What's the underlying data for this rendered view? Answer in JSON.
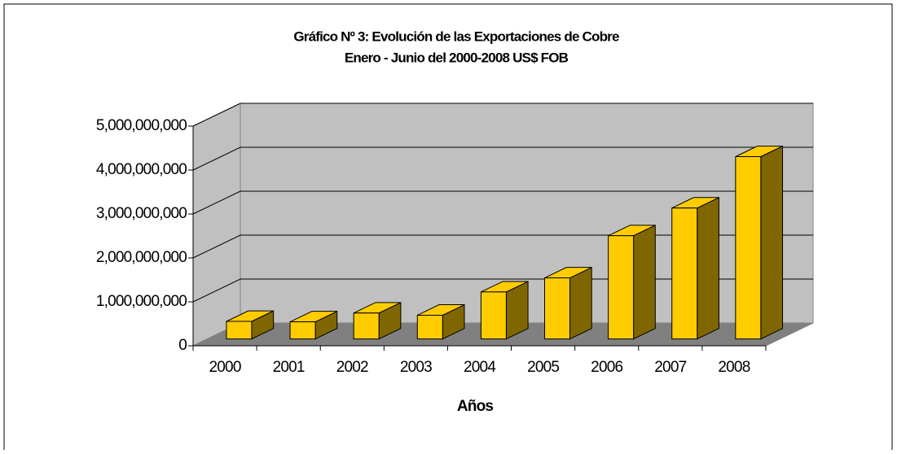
{
  "chart_data": {
    "type": "bar3d",
    "title": "Gráfico Nº 3: Evolución de las Exportaciones de Cobre",
    "subtitle": "Enero - Junio  del  2000-2008 US$ FOB",
    "x_label": "Años",
    "categories": [
      "2000",
      "2001",
      "2002",
      "2003",
      "2004",
      "2005",
      "2006",
      "2007",
      "2008"
    ],
    "values": [
      400000000,
      390000000,
      590000000,
      540000000,
      1070000000,
      1390000000,
      2350000000,
      2980000000,
      4150000000
    ],
    "color": "#ffcc00",
    "side_color": "#806600",
    "ylim": [
      0,
      5000000000
    ],
    "yticks": [
      0,
      {
        "value": 1000000000,
        "label": "1,000,000,000"
      },
      {
        "value": 2000000000,
        "label": "2,000,000,000"
      },
      {
        "value": 3000000000,
        "label": "3,000,000,000"
      },
      {
        "value": 4000000000,
        "label": "4,000,000,000"
      },
      {
        "value": 5000000000,
        "label": "5,000,000,000"
      }
    ],
    "grid": true
  }
}
